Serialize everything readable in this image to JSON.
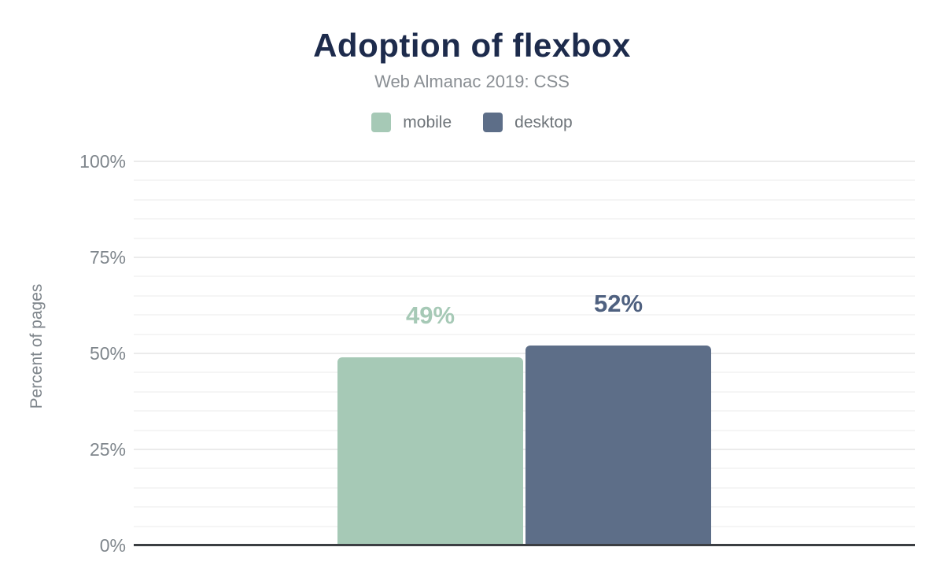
{
  "chart_data": {
    "type": "bar",
    "title": "Adoption of flexbox",
    "subtitle": "Web Almanac 2019: CSS",
    "ylabel": "Percent of pages",
    "xlabel": "",
    "categories": [
      ""
    ],
    "series": [
      {
        "name": "mobile",
        "values": [
          49
        ],
        "value_labels": [
          "49%"
        ],
        "color": "#a6c9b6",
        "value_label_color": "#a6c9b6"
      },
      {
        "name": "desktop",
        "values": [
          52
        ],
        "value_labels": [
          "52%"
        ],
        "color": "#5d6e88",
        "value_label_color": "#4f6180"
      }
    ],
    "ylim": [
      0,
      100
    ],
    "ytick_values": [
      0,
      25,
      50,
      75,
      100
    ],
    "ytick_labels": [
      "0%",
      "25%",
      "50%",
      "75%",
      "100%"
    ],
    "minor_gridline_step_percent": 5,
    "grid": "on",
    "legend_position": "top-center"
  },
  "colors": {
    "background": "#ffffff",
    "title": "#1d2b4c",
    "subtitle": "#898e93",
    "axis_tick_text": "#7f868c",
    "legend_text": "#6e7479",
    "axis_line": "#3b3e42",
    "gridline_major": "#ebebeb",
    "gridline_minor": "#f5f5f5"
  }
}
